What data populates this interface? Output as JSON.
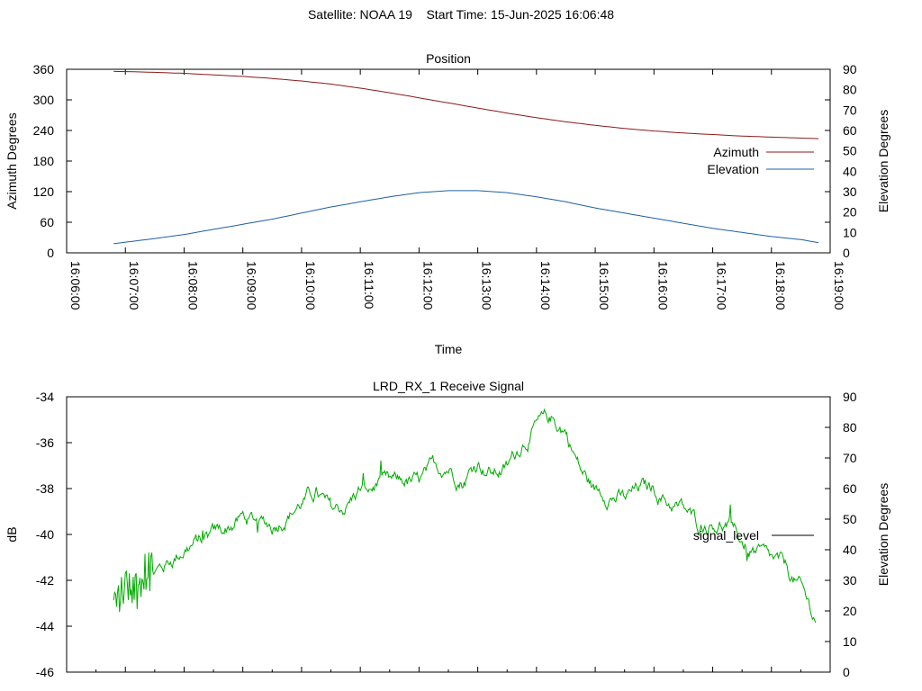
{
  "header": {
    "satellite": "Satellite: NOAA 19",
    "start_time": "Start Time: 15-Jun-2025 16:06:48"
  },
  "chart_data": [
    {
      "type": "line",
      "title": "Position",
      "xlabel": "Time",
      "ylabel": "Azimuth Degrees",
      "y2label": "Elevation Degrees",
      "xlim": [
        "16:06:00",
        "16:19:00"
      ],
      "x_ticks": [
        "16:06:00",
        "16:07:00",
        "16:08:00",
        "16:09:00",
        "16:10:00",
        "16:11:00",
        "16:12:00",
        "16:13:00",
        "16:14:00",
        "16:15:00",
        "16:16:00",
        "16:17:00",
        "16:18:00",
        "16:19:00"
      ],
      "ylim": [
        0,
        360
      ],
      "y_ticks": [
        0,
        60,
        120,
        180,
        240,
        300,
        360
      ],
      "y2lim": [
        0,
        90
      ],
      "y2_ticks": [
        0,
        10,
        20,
        30,
        40,
        50,
        60,
        70,
        80,
        90
      ],
      "grid": false,
      "legend_position": "right",
      "series": [
        {
          "name": "Azimuth",
          "axis": "left",
          "color": "#8b1a1a",
          "x": [
            "16:06:48",
            "16:07:30",
            "16:08:00",
            "16:08:30",
            "16:09:00",
            "16:09:30",
            "16:10:00",
            "16:10:30",
            "16:11:00",
            "16:11:30",
            "16:12:00",
            "16:12:30",
            "16:13:00",
            "16:13:30",
            "16:14:00",
            "16:14:30",
            "16:15:00",
            "16:15:30",
            "16:16:00",
            "16:16:30",
            "16:17:00",
            "16:17:30",
            "16:18:00",
            "16:18:30",
            "16:18:48"
          ],
          "values": [
            356,
            354,
            352,
            349,
            346,
            342,
            337,
            331,
            323,
            314,
            304,
            294,
            284,
            274,
            265,
            257,
            250,
            244,
            239,
            235,
            232,
            229,
            227,
            225,
            224
          ]
        },
        {
          "name": "Elevation",
          "axis": "right",
          "color": "#1f5fa8",
          "x": [
            "16:06:48",
            "16:07:30",
            "16:08:00",
            "16:08:30",
            "16:09:00",
            "16:09:30",
            "16:10:00",
            "16:10:30",
            "16:11:00",
            "16:11:30",
            "16:12:00",
            "16:12:30",
            "16:13:00",
            "16:13:30",
            "16:14:00",
            "16:14:30",
            "16:15:00",
            "16:15:30",
            "16:16:00",
            "16:16:30",
            "16:17:00",
            "16:17:30",
            "16:18:00",
            "16:18:30",
            "16:18:48"
          ],
          "values": [
            4.5,
            7,
            9,
            11.5,
            14,
            16.5,
            19.5,
            22.5,
            25,
            27.5,
            29.5,
            30.5,
            30.5,
            29.5,
            27.5,
            25,
            22,
            19.5,
            17,
            14.5,
            12,
            10,
            8,
            6.5,
            5
          ]
        }
      ]
    },
    {
      "type": "line",
      "title": "LRD_RX_1 Receive Signal",
      "ylabel": "dB",
      "y2label": "Elevation Degrees",
      "xlim": [
        "16:06:00",
        "16:19:00"
      ],
      "ylim": [
        -46,
        -34
      ],
      "y_ticks": [
        -46,
        -44,
        -42,
        -40,
        -38,
        -36,
        -34
      ],
      "y2lim": [
        0,
        90
      ],
      "y2_ticks": [
        0,
        10,
        20,
        30,
        40,
        50,
        60,
        70,
        80,
        90
      ],
      "grid": false,
      "legend_position": "right",
      "legend": [
        {
          "name": "signal_level",
          "color": "#000000"
        }
      ],
      "series": [
        {
          "name": "signal_level",
          "color": "#00aa00",
          "x": [
            "16:06:48",
            "16:07:00",
            "16:07:15",
            "16:07:30",
            "16:07:45",
            "16:08:00",
            "16:08:15",
            "16:08:30",
            "16:08:45",
            "16:09:00",
            "16:09:15",
            "16:09:30",
            "16:09:45",
            "16:10:00",
            "16:10:15",
            "16:10:30",
            "16:10:45",
            "16:11:00",
            "16:11:15",
            "16:11:30",
            "16:11:45",
            "16:12:00",
            "16:12:15",
            "16:12:30",
            "16:12:45",
            "16:13:00",
            "16:13:15",
            "16:13:30",
            "16:13:45",
            "16:14:00",
            "16:14:15",
            "16:14:30",
            "16:14:45",
            "16:15:00",
            "16:15:15",
            "16:15:30",
            "16:15:45",
            "16:16:00",
            "16:16:15",
            "16:16:30",
            "16:16:45",
            "16:17:00",
            "16:17:15",
            "16:17:30",
            "16:17:45",
            "16:18:00",
            "16:18:15",
            "16:18:30",
            "16:18:45"
          ],
          "values": [
            -43.2,
            -42.6,
            -42.2,
            -41.8,
            -41.2,
            -40.6,
            -40.3,
            -40.1,
            -39.7,
            -39.3,
            -39.4,
            -39.6,
            -39.1,
            -38.6,
            -38.2,
            -39.0,
            -38.8,
            -38.0,
            -37.8,
            -37.9,
            -37.7,
            -37.8,
            -37.2,
            -37.0,
            -37.6,
            -36.8,
            -37.3,
            -37.1,
            -36.0,
            -35.3,
            -35.0,
            -35.5,
            -37.2,
            -38.1,
            -38.2,
            -38.5,
            -38.0,
            -38.0,
            -38.6,
            -38.9,
            -39.6,
            -39.4,
            -39.6,
            -40.3,
            -40.8,
            -41.2,
            -41.5,
            -42.4,
            -43.7
          ]
        }
      ]
    }
  ]
}
